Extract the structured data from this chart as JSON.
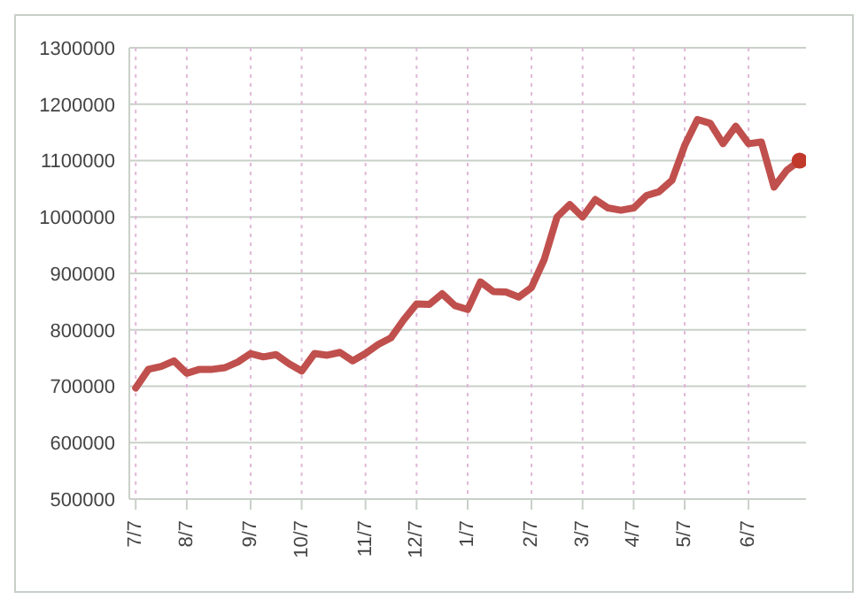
{
  "chart_data": {
    "type": "line",
    "categories": [
      "7/7",
      null,
      null,
      null,
      "8/7",
      null,
      null,
      null,
      null,
      "9/7",
      null,
      null,
      null,
      "10/7",
      null,
      null,
      null,
      null,
      "11/7",
      null,
      null,
      null,
      "12/7",
      null,
      null,
      null,
      "1/7",
      null,
      null,
      null,
      null,
      "2/7",
      null,
      null,
      null,
      "3/7",
      null,
      null,
      null,
      "4/7",
      null,
      null,
      null,
      "5/7",
      null,
      null,
      null,
      null,
      "6/7",
      null,
      null,
      null,
      null
    ],
    "series": [
      {
        "color": "#c0504d",
        "values": [
          697000,
          730000,
          735000,
          745000,
          723000,
          730000,
          730000,
          733000,
          743000,
          758000,
          752000,
          756000,
          740000,
          727000,
          758000,
          755000,
          760000,
          745000,
          758000,
          774000,
          786000,
          818000,
          846000,
          845000,
          864000,
          843000,
          836000,
          885000,
          868000,
          867000,
          858000,
          875000,
          925000,
          1000000,
          1022000,
          1000000,
          1031000,
          1016000,
          1012000,
          1016000,
          1038000,
          1045000,
          1065000,
          1127000,
          1173000,
          1166000,
          1130000,
          1161000,
          1130000,
          1133000,
          1053000,
          1083000,
          1100000
        ]
      },
      {
        "type": "scatter",
        "color": "#c0392b",
        "marker": "circle",
        "values": [
          null,
          null,
          null,
          null,
          null,
          null,
          null,
          null,
          null,
          null,
          null,
          null,
          null,
          null,
          null,
          null,
          null,
          null,
          null,
          null,
          null,
          null,
          null,
          null,
          null,
          null,
          null,
          null,
          null,
          null,
          null,
          null,
          null,
          null,
          null,
          null,
          null,
          null,
          null,
          null,
          null,
          null,
          null,
          null,
          null,
          null,
          null,
          null,
          null,
          null,
          null,
          null,
          1100000
        ]
      }
    ],
    "ylim": [
      500000,
      1300000
    ],
    "yticks": [
      500000,
      600000,
      700000,
      800000,
      900000,
      1000000,
      1100000,
      1200000,
      1300000
    ],
    "grid": true,
    "marker": "none",
    "line_style": "solid"
  }
}
